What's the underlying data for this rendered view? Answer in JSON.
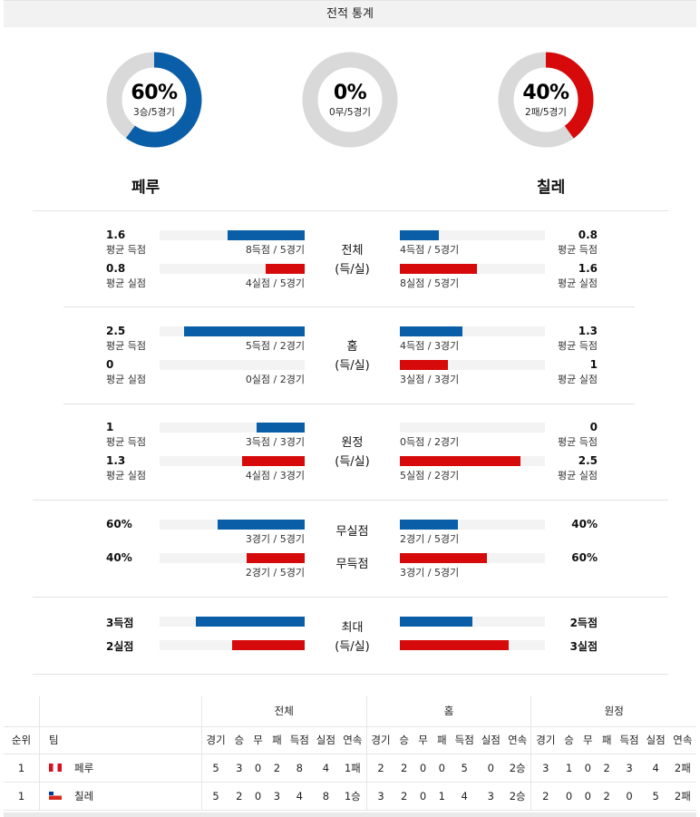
{
  "header": {
    "title": "전적 통계"
  },
  "colors": {
    "home": "#0a5ea8",
    "away": "#d60a0a",
    "empty": "#d9d9d9"
  },
  "donuts": [
    {
      "pct_label": "60%",
      "sub": "3승/5경기",
      "value": 0.6,
      "color": "#0a5ea8"
    },
    {
      "pct_label": "0%",
      "sub": "0무/5경기",
      "value": 0.0,
      "color": "#0a5ea8"
    },
    {
      "pct_label": "40%",
      "sub": "2패/5경기",
      "value": 0.4,
      "color": "#d60a0a"
    }
  ],
  "teams": {
    "home": "페루",
    "away": "칠레"
  },
  "stats": {
    "total": {
      "label1": "전체",
      "label2": "(득/실)",
      "home_scored": {
        "value": "1.6",
        "label": "평균 득점",
        "caption": "8득점 / 5경기",
        "ratio": 0.53
      },
      "home_conceded": {
        "value": "0.8",
        "label": "평균 실점",
        "caption": "4실점 / 5경기",
        "ratio": 0.27
      },
      "away_scored": {
        "value": "0.8",
        "label": "평균 득점",
        "caption": "4득점 / 5경기",
        "ratio": 0.27
      },
      "away_conceded": {
        "value": "1.6",
        "label": "평균 실점",
        "caption": "8실점 / 5경기",
        "ratio": 0.53
      }
    },
    "home": {
      "label1": "홈",
      "label2": "(득/실)",
      "home_scored": {
        "value": "2.5",
        "label": "평균 득점",
        "caption": "5득점 / 2경기",
        "ratio": 0.83
      },
      "home_conceded": {
        "value": "0",
        "label": "평균 실점",
        "caption": "0실점 / 2경기",
        "ratio": 0.0
      },
      "away_scored": {
        "value": "1.3",
        "label": "평균 득점",
        "caption": "4득점 / 3경기",
        "ratio": 0.43
      },
      "away_conceded": {
        "value": "1",
        "label": "평균 실점",
        "caption": "3실점 / 3경기",
        "ratio": 0.33
      }
    },
    "away": {
      "label1": "원정",
      "label2": "(득/실)",
      "home_scored": {
        "value": "1",
        "label": "평균 득점",
        "caption": "3득점 / 3경기",
        "ratio": 0.33
      },
      "home_conceded": {
        "value": "1.3",
        "label": "평균 실점",
        "caption": "4실점 / 3경기",
        "ratio": 0.43
      },
      "away_scored": {
        "value": "0",
        "label": "평균 득점",
        "caption": "0득점 / 2경기",
        "ratio": 0.0
      },
      "away_conceded": {
        "value": "2.5",
        "label": "평균 실점",
        "caption": "5실점 / 2경기",
        "ratio": 0.83
      }
    },
    "clean": {
      "label_a": "무실점",
      "label_b": "무득점",
      "home_a": {
        "value": "60%",
        "caption": "3경기 / 5경기",
        "ratio": 0.6
      },
      "home_b": {
        "value": "40%",
        "caption": "2경기 / 5경기",
        "ratio": 0.4
      },
      "away_a": {
        "value": "40%",
        "caption": "2경기 / 5경기",
        "ratio": 0.4
      },
      "away_b": {
        "value": "60%",
        "caption": "3경기 / 5경기",
        "ratio": 0.6
      }
    },
    "max": {
      "label1": "최대",
      "label2": "(득/실)",
      "home_scored": {
        "value": "3득점",
        "ratio": 0.75
      },
      "home_conceded": {
        "value": "2실점",
        "ratio": 0.5
      },
      "away_scored": {
        "value": "2득점",
        "ratio": 0.5
      },
      "away_conceded": {
        "value": "3실점",
        "ratio": 0.75
      }
    }
  },
  "table": {
    "groups": [
      "전체",
      "홈",
      "원정"
    ],
    "columns": [
      "순위",
      "팀",
      "경기",
      "승",
      "무",
      "패",
      "득점",
      "실점",
      "연속",
      "경기",
      "승",
      "무",
      "패",
      "득점",
      "실점",
      "연속",
      "경기",
      "승",
      "무",
      "패",
      "득점",
      "실점",
      "연속"
    ],
    "rows": [
      {
        "rank": "1",
        "team": "페루",
        "flag": "peru-flag",
        "cells": [
          "5",
          "3",
          "0",
          "2",
          "8",
          "4",
          "1패",
          "2",
          "2",
          "0",
          "0",
          "5",
          "0",
          "2승",
          "3",
          "1",
          "0",
          "2",
          "3",
          "4",
          "2패"
        ]
      },
      {
        "rank": "1",
        "team": "칠레",
        "flag": "chile-flag",
        "cells": [
          "5",
          "2",
          "0",
          "3",
          "4",
          "8",
          "1승",
          "3",
          "2",
          "0",
          "1",
          "4",
          "3",
          "2승",
          "2",
          "0",
          "0",
          "2",
          "0",
          "5",
          "2패"
        ]
      }
    ]
  }
}
